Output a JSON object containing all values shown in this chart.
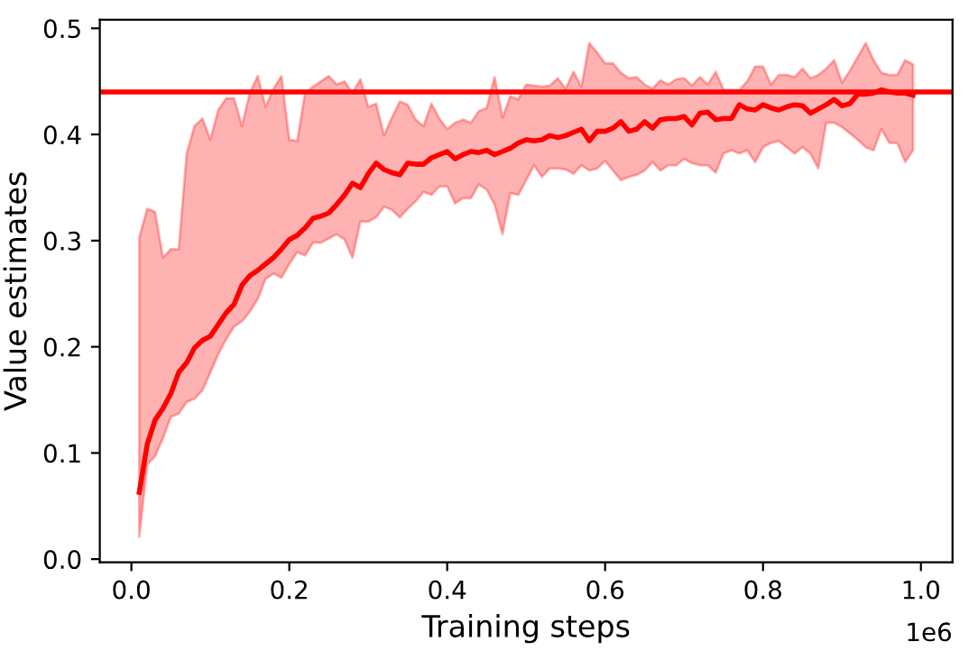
{
  "chart_data": {
    "type": "line",
    "xlabel": "Training steps",
    "ylabel": "Value estimates",
    "annotations": [
      "1e6"
    ],
    "x": [
      0.01,
      0.02,
      0.03,
      0.04,
      0.05,
      0.06,
      0.07,
      0.08,
      0.09,
      0.1,
      0.11,
      0.12,
      0.13,
      0.14,
      0.15,
      0.16,
      0.17,
      0.18,
      0.19,
      0.2,
      0.21,
      0.22,
      0.23,
      0.24,
      0.25,
      0.26,
      0.27,
      0.28,
      0.29,
      0.3,
      0.31,
      0.32,
      0.33,
      0.34,
      0.35,
      0.36,
      0.37,
      0.38,
      0.39,
      0.4,
      0.41,
      0.42,
      0.43,
      0.44,
      0.45,
      0.46,
      0.47,
      0.48,
      0.49,
      0.5,
      0.51,
      0.52,
      0.53,
      0.54,
      0.55,
      0.56,
      0.57,
      0.58,
      0.59,
      0.6,
      0.61,
      0.62,
      0.63,
      0.64,
      0.65,
      0.66,
      0.67,
      0.68,
      0.69,
      0.7,
      0.71,
      0.72,
      0.73,
      0.74,
      0.75,
      0.76,
      0.77,
      0.78,
      0.79,
      0.8,
      0.81,
      0.82,
      0.83,
      0.84,
      0.85,
      0.86,
      0.87,
      0.88,
      0.89,
      0.9,
      0.91,
      0.92,
      0.93,
      0.94,
      0.95,
      0.96,
      0.97,
      0.98,
      0.99
    ],
    "series": [
      {
        "color": "#ff0000",
        "values": [
          0.063,
          0.108,
          0.131,
          0.142,
          0.156,
          0.176,
          0.185,
          0.199,
          0.206,
          0.21,
          0.221,
          0.232,
          0.24,
          0.258,
          0.267,
          0.272,
          0.278,
          0.284,
          0.292,
          0.301,
          0.305,
          0.312,
          0.321,
          0.323,
          0.326,
          0.334,
          0.343,
          0.354,
          0.35,
          0.363,
          0.373,
          0.367,
          0.364,
          0.362,
          0.373,
          0.372,
          0.372,
          0.378,
          0.381,
          0.384,
          0.377,
          0.381,
          0.384,
          0.383,
          0.385,
          0.381,
          0.384,
          0.387,
          0.392,
          0.395,
          0.394,
          0.395,
          0.399,
          0.397,
          0.399,
          0.402,
          0.405,
          0.394,
          0.403,
          0.403,
          0.406,
          0.412,
          0.403,
          0.405,
          0.412,
          0.406,
          0.414,
          0.415,
          0.415,
          0.417,
          0.409,
          0.42,
          0.421,
          0.414,
          0.415,
          0.415,
          0.428,
          0.424,
          0.423,
          0.428,
          0.425,
          0.423,
          0.426,
          0.428,
          0.427,
          0.42,
          0.424,
          0.428,
          0.433,
          0.427,
          0.429,
          0.438,
          0.438,
          0.439,
          0.442,
          0.44,
          0.439,
          0.439,
          0.437
        ],
        "lower": [
          0.021,
          0.089,
          0.097,
          0.114,
          0.134,
          0.137,
          0.148,
          0.151,
          0.159,
          0.176,
          0.193,
          0.207,
          0.219,
          0.224,
          0.233,
          0.245,
          0.264,
          0.269,
          0.265,
          0.278,
          0.289,
          0.286,
          0.298,
          0.298,
          0.302,
          0.306,
          0.301,
          0.284,
          0.318,
          0.318,
          0.322,
          0.332,
          0.329,
          0.322,
          0.33,
          0.337,
          0.346,
          0.343,
          0.351,
          0.351,
          0.335,
          0.34,
          0.34,
          0.353,
          0.348,
          0.334,
          0.306,
          0.345,
          0.343,
          0.357,
          0.371,
          0.36,
          0.368,
          0.368,
          0.367,
          0.363,
          0.371,
          0.366,
          0.368,
          0.375,
          0.366,
          0.357,
          0.36,
          0.362,
          0.366,
          0.374,
          0.366,
          0.371,
          0.371,
          0.377,
          0.373,
          0.371,
          0.371,
          0.364,
          0.382,
          0.385,
          0.382,
          0.385,
          0.374,
          0.388,
          0.392,
          0.394,
          0.388,
          0.382,
          0.388,
          0.382,
          0.368,
          0.411,
          0.411,
          0.407,
          0.401,
          0.395,
          0.388,
          0.385,
          0.405,
          0.392,
          0.392,
          0.374,
          0.385
        ],
        "upper": [
          0.303,
          0.33,
          0.327,
          0.284,
          0.292,
          0.292,
          0.382,
          0.408,
          0.415,
          0.395,
          0.423,
          0.434,
          0.434,
          0.408,
          0.439,
          0.455,
          0.426,
          0.443,
          0.455,
          0.395,
          0.394,
          0.439,
          0.445,
          0.45,
          0.455,
          0.447,
          0.45,
          0.439,
          0.452,
          0.426,
          0.429,
          0.399,
          0.416,
          0.431,
          0.428,
          0.414,
          0.408,
          0.429,
          0.415,
          0.405,
          0.411,
          0.414,
          0.411,
          0.422,
          0.425,
          0.454,
          0.416,
          0.436,
          0.433,
          0.447,
          0.446,
          0.445,
          0.446,
          0.453,
          0.443,
          0.459,
          0.445,
          0.486,
          0.477,
          0.467,
          0.467,
          0.458,
          0.453,
          0.454,
          0.447,
          0.443,
          0.451,
          0.447,
          0.452,
          0.453,
          0.446,
          0.454,
          0.447,
          0.459,
          0.442,
          0.442,
          0.442,
          0.45,
          0.464,
          0.464,
          0.447,
          0.456,
          0.456,
          0.454,
          0.462,
          0.453,
          0.456,
          0.462,
          0.47,
          0.449,
          0.46,
          0.473,
          0.486,
          0.47,
          0.458,
          0.456,
          0.456,
          0.47,
          0.466
        ]
      }
    ],
    "ref_lines": [
      {
        "axis": "y",
        "value": 0.44,
        "color": "#ff0000",
        "line_style": "solid"
      }
    ],
    "xlim": [
      -0.04,
      1.04
    ],
    "xticks": [
      {
        "value": 0,
        "label": "0.0"
      },
      0.2,
      0.4,
      0.6,
      0.8,
      {
        "value": 1,
        "label": "1.0"
      }
    ],
    "ylim": [
      -0.003,
      0.508
    ],
    "yticks": [
      {
        "value": 0,
        "label": "0.0"
      },
      0.1,
      0.2,
      0.3,
      0.4,
      0.5
    ],
    "grid": false,
    "legend": false
  }
}
